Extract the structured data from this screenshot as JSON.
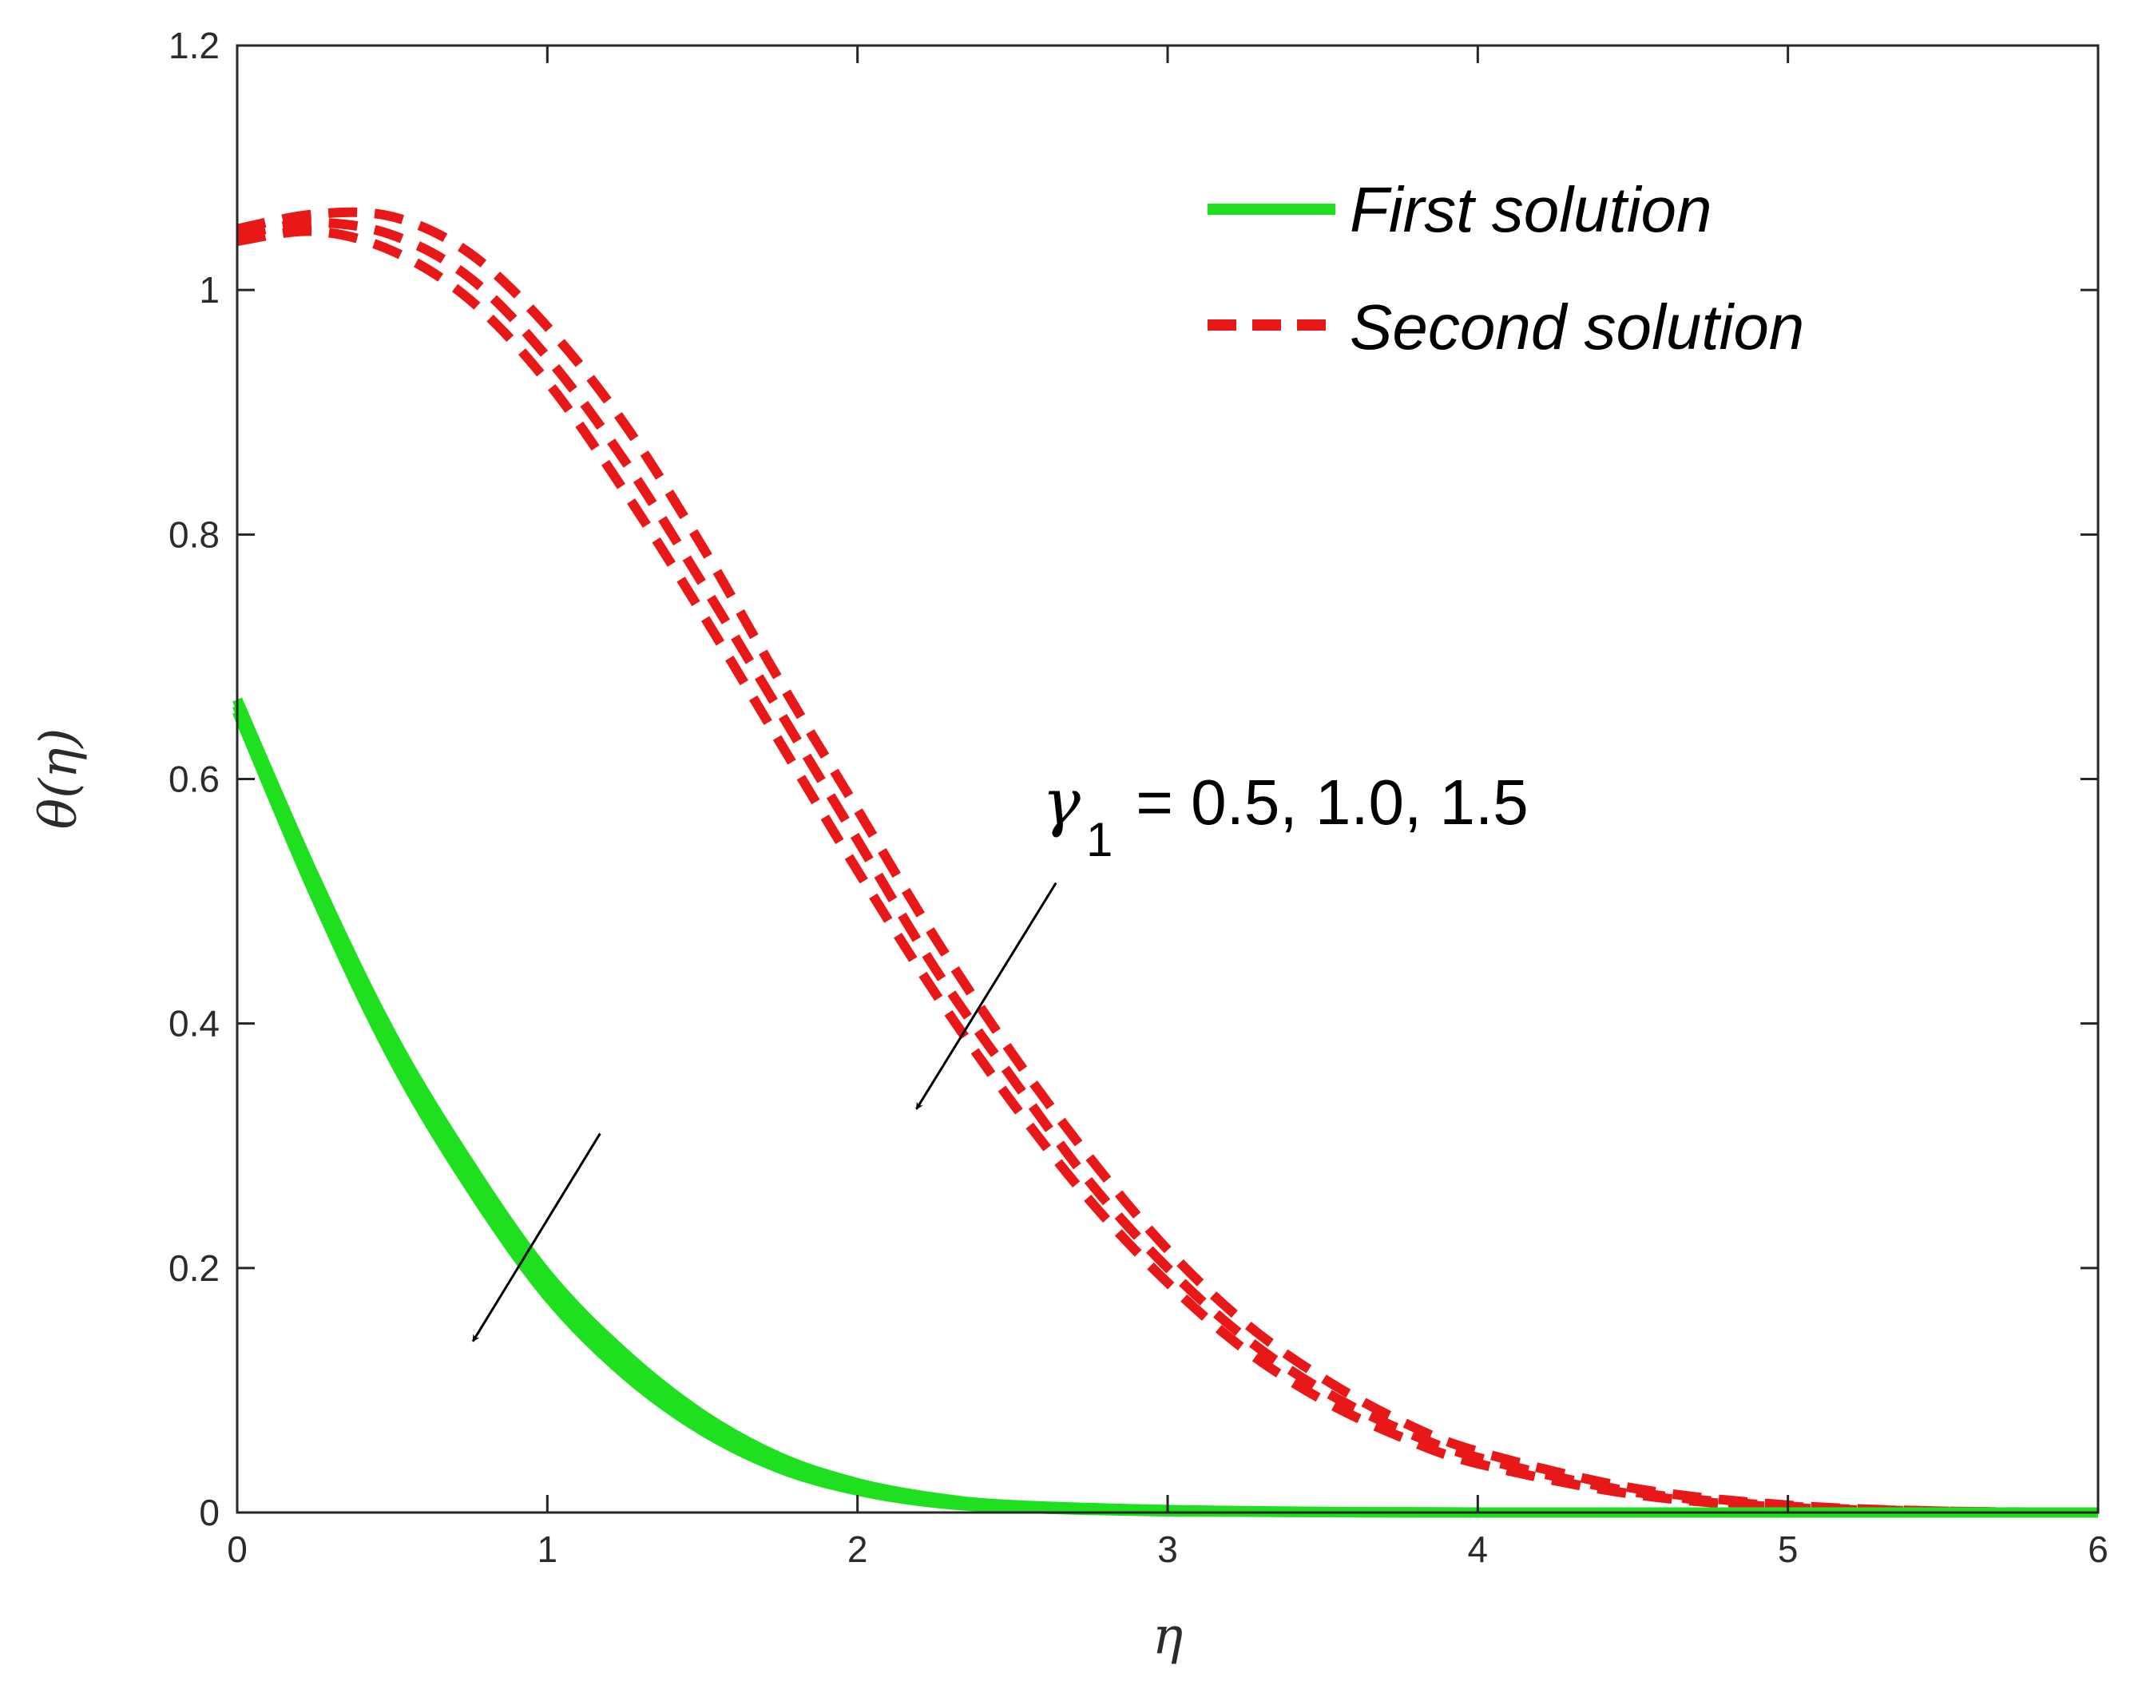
{
  "chart_data": {
    "type": "line",
    "xlabel": "η",
    "ylabel": "θ(η)",
    "xlim": [
      0,
      6
    ],
    "ylim": [
      0,
      1.2
    ],
    "xticks": [
      0,
      1,
      2,
      3,
      4,
      5,
      6
    ],
    "yticks": [
      0,
      0.2,
      0.4,
      0.6,
      0.8,
      1,
      1.2
    ],
    "xtick_labels": [
      "0",
      "1",
      "2",
      "3",
      "4",
      "5",
      "6"
    ],
    "ytick_labels": [
      "0",
      "0.2",
      "0.4",
      "0.6",
      "0.8",
      "1",
      "1.2"
    ],
    "grid": false,
    "legend_position": "top-right",
    "legend": [
      {
        "label": "First solution",
        "style": "solid",
        "color": "#1fe01f"
      },
      {
        "label": "Second solution",
        "style": "dashed",
        "color": "#e81818"
      }
    ],
    "annotation": {
      "symbol": "γ",
      "subscript": "1",
      "text": " = 0.5, 1.0, 1.5"
    },
    "series": [
      {
        "group": "First solution",
        "style": "solid",
        "color": "#1fe01f",
        "x": [
          0,
          0.25,
          0.5,
          0.75,
          1.0,
          1.25,
          1.5,
          1.75,
          2.0,
          2.25,
          2.5,
          3.0,
          3.5,
          4.0,
          5.0,
          6.0
        ],
        "y": [
          0.665,
          0.52,
          0.39,
          0.285,
          0.195,
          0.13,
          0.08,
          0.045,
          0.024,
          0.012,
          0.006,
          0.002,
          0.0005,
          0.0,
          0.0,
          0.0
        ]
      },
      {
        "group": "First solution",
        "style": "solid",
        "color": "#1fe01f",
        "x": [
          0,
          0.25,
          0.5,
          0.75,
          1.0,
          1.25,
          1.5,
          1.75,
          2.0,
          2.25,
          2.5,
          3.0,
          3.5,
          4.0,
          5.0,
          6.0
        ],
        "y": [
          0.66,
          0.512,
          0.38,
          0.275,
          0.185,
          0.12,
          0.073,
          0.04,
          0.021,
          0.01,
          0.005,
          0.0015,
          0.0004,
          0.0,
          0.0,
          0.0
        ]
      },
      {
        "group": "First solution",
        "style": "solid",
        "color": "#1fe01f",
        "x": [
          0,
          0.25,
          0.5,
          0.75,
          1.0,
          1.25,
          1.5,
          1.75,
          2.0,
          2.25,
          2.5,
          3.0,
          3.5,
          4.0,
          5.0,
          6.0
        ],
        "y": [
          0.655,
          0.505,
          0.372,
          0.266,
          0.177,
          0.113,
          0.067,
          0.036,
          0.018,
          0.008,
          0.004,
          0.001,
          0.0003,
          0.0,
          0.0,
          0.0
        ]
      },
      {
        "group": "Second solution",
        "style": "dashed",
        "color": "#e81818",
        "x": [
          0,
          0.25,
          0.5,
          0.75,
          1.0,
          1.25,
          1.5,
          1.75,
          2.0,
          2.25,
          2.5,
          2.75,
          3.0,
          3.25,
          3.5,
          3.75,
          4.0,
          4.5,
          5.0,
          5.5,
          6.0
        ],
        "y": [
          1.05,
          1.062,
          1.06,
          1.03,
          0.97,
          0.89,
          0.79,
          0.68,
          0.575,
          0.47,
          0.375,
          0.29,
          0.215,
          0.155,
          0.11,
          0.075,
          0.05,
          0.02,
          0.006,
          0.001,
          0.0
        ]
      },
      {
        "group": "Second solution",
        "style": "dashed",
        "color": "#e81818",
        "x": [
          0,
          0.25,
          0.5,
          0.75,
          1.0,
          1.25,
          1.5,
          1.75,
          2.0,
          2.25,
          2.5,
          2.75,
          3.0,
          3.25,
          3.5,
          3.75,
          4.0,
          4.5,
          5.0,
          5.5,
          6.0
        ],
        "y": [
          1.045,
          1.055,
          1.045,
          1.01,
          0.945,
          0.86,
          0.76,
          0.655,
          0.55,
          0.445,
          0.355,
          0.27,
          0.2,
          0.143,
          0.1,
          0.068,
          0.045,
          0.017,
          0.005,
          0.001,
          0.0
        ]
      },
      {
        "group": "Second solution",
        "style": "dashed",
        "color": "#e81818",
        "x": [
          0,
          0.25,
          0.5,
          0.75,
          1.0,
          1.25,
          1.5,
          1.75,
          2.0,
          2.25,
          2.5,
          2.75,
          3.0,
          3.25,
          3.5,
          3.75,
          4.0,
          4.5,
          5.0,
          5.5,
          6.0
        ],
        "y": [
          1.04,
          1.048,
          1.032,
          0.992,
          0.925,
          0.835,
          0.735,
          0.63,
          0.525,
          0.425,
          0.335,
          0.255,
          0.188,
          0.133,
          0.092,
          0.062,
          0.04,
          0.015,
          0.004,
          0.001,
          0.0
        ]
      }
    ],
    "arrows": [
      {
        "from": [
          1.17,
          0.31
        ],
        "to": [
          0.76,
          0.14
        ]
      },
      {
        "from": [
          2.64,
          0.515
        ],
        "to": [
          2.19,
          0.33
        ]
      }
    ]
  }
}
